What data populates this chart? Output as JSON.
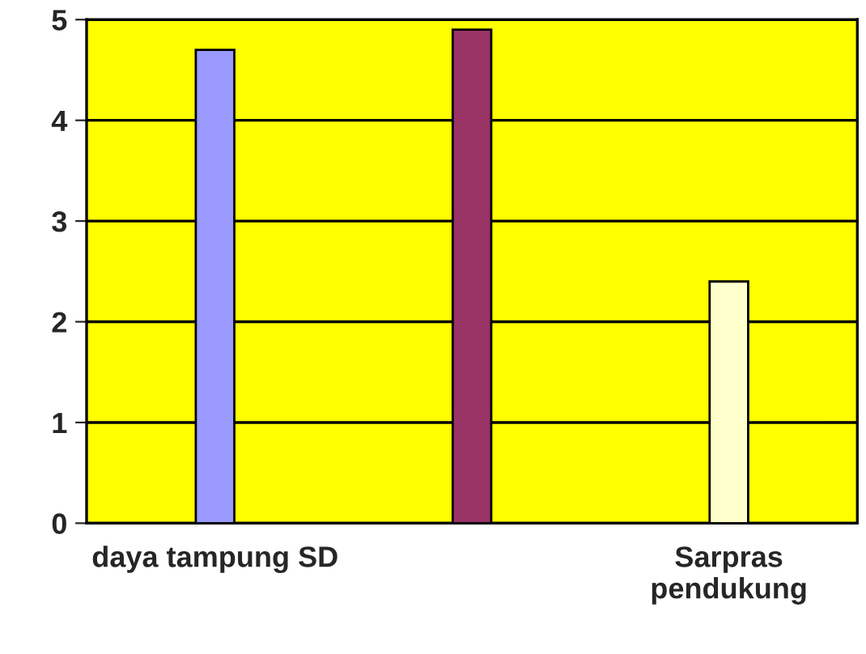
{
  "chart_data": {
    "type": "bar",
    "categories": [
      "daya tampung SD",
      null,
      "Sarpras pendukung"
    ],
    "values": [
      4.7,
      4.9,
      2.4
    ],
    "colors": [
      "#9999ff",
      "#993366",
      "#ffffcc"
    ],
    "ylim": [
      0,
      5
    ],
    "yticks": [
      0,
      1,
      2,
      3,
      4,
      5
    ],
    "grid": "y"
  }
}
